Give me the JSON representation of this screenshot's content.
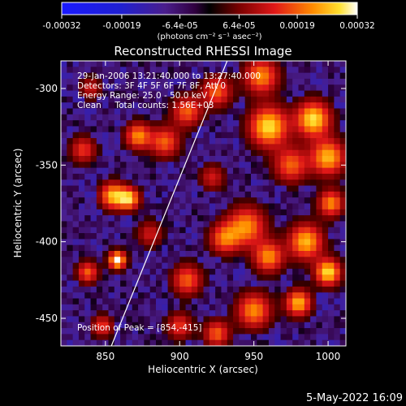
{
  "chart_data": {
    "type": "heatmap",
    "title": "Reconstructed RHESSI Image",
    "xlabel": "Heliocentric X (arcsec)",
    "ylabel": "Heliocentric Y (arcsec)",
    "xlim": [
      820,
      1012
    ],
    "ylim": [
      -468,
      -282
    ],
    "x_ticks": [
      850,
      900,
      950,
      1000
    ],
    "y_ticks": [
      -300,
      -350,
      -400,
      -450
    ],
    "colorbar": {
      "range": [
        -0.00032,
        0.00032
      ],
      "tick_values": [
        -0.00032,
        -0.00019,
        -6.4e-05,
        6.4e-05,
        0.00019,
        0.00032
      ],
      "tick_labels": [
        "-0.00032",
        "-0.00019",
        "-6.4e-05",
        "6.4e-05",
        "0.00019",
        "0.00032"
      ],
      "unit_label": "(photons cm⁻² s⁻¹ asec⁻²)"
    },
    "annotations": {
      "time": "29-Jan-2006 13:21:40.000 to 13:27:40.000",
      "detectors": "Detectors: 3F 4F 5F 6F 7F 8F, Att 0",
      "energy": "Energy Range: 25.0 - 50.0 keV",
      "method": "Clean     Total counts: 1.56E+03",
      "peak": "Position of Peak = [854,-415]"
    },
    "limb_line": {
      "x": [
        854,
        932
      ],
      "y": [
        -468,
        -282
      ]
    },
    "blobs": [
      {
        "x": 858,
        "y": -412,
        "amp": 1.0,
        "r": 4
      },
      {
        "x": 855,
        "y": -370,
        "amp": 0.8,
        "r": 6
      },
      {
        "x": 866,
        "y": -372,
        "amp": 0.8,
        "r": 5
      },
      {
        "x": 872,
        "y": -331,
        "amp": 0.7,
        "r": 6
      },
      {
        "x": 890,
        "y": -335,
        "amp": 0.6,
        "r": 7
      },
      {
        "x": 905,
        "y": -315,
        "amp": 0.6,
        "r": 7
      },
      {
        "x": 835,
        "y": -340,
        "amp": 0.5,
        "r": 6
      },
      {
        "x": 925,
        "y": -302,
        "amp": 0.6,
        "r": 7
      },
      {
        "x": 955,
        "y": -292,
        "amp": 0.7,
        "r": 8
      },
      {
        "x": 960,
        "y": -325,
        "amp": 0.9,
        "r": 9
      },
      {
        "x": 990,
        "y": -320,
        "amp": 0.9,
        "r": 8
      },
      {
        "x": 1000,
        "y": -345,
        "amp": 0.8,
        "r": 8
      },
      {
        "x": 975,
        "y": -350,
        "amp": 0.6,
        "r": 8
      },
      {
        "x": 945,
        "y": -390,
        "amp": 0.7,
        "r": 9
      },
      {
        "x": 930,
        "y": -398,
        "amp": 0.6,
        "r": 7
      },
      {
        "x": 960,
        "y": -410,
        "amp": 0.7,
        "r": 7
      },
      {
        "x": 985,
        "y": -400,
        "amp": 0.8,
        "r": 8
      },
      {
        "x": 1002,
        "y": -375,
        "amp": 0.7,
        "r": 6
      },
      {
        "x": 1000,
        "y": -420,
        "amp": 0.9,
        "r": 6
      },
      {
        "x": 950,
        "y": -445,
        "amp": 0.7,
        "r": 8
      },
      {
        "x": 980,
        "y": -440,
        "amp": 0.8,
        "r": 6
      },
      {
        "x": 905,
        "y": -425,
        "amp": 0.6,
        "r": 7
      },
      {
        "x": 900,
        "y": -455,
        "amp": 0.5,
        "r": 6
      },
      {
        "x": 925,
        "y": -460,
        "amp": 0.6,
        "r": 6
      },
      {
        "x": 838,
        "y": -420,
        "amp": 0.6,
        "r": 5
      },
      {
        "x": 848,
        "y": -455,
        "amp": 0.5,
        "r": 5
      },
      {
        "x": 880,
        "y": -395,
        "amp": 0.4,
        "r": 6
      },
      {
        "x": 922,
        "y": -358,
        "amp": 0.4,
        "r": 6
      },
      {
        "x": 840,
        "y": -300,
        "amp": 0.4,
        "r": 5
      }
    ]
  },
  "footer": {
    "date": "5-May-2022 16:09"
  }
}
